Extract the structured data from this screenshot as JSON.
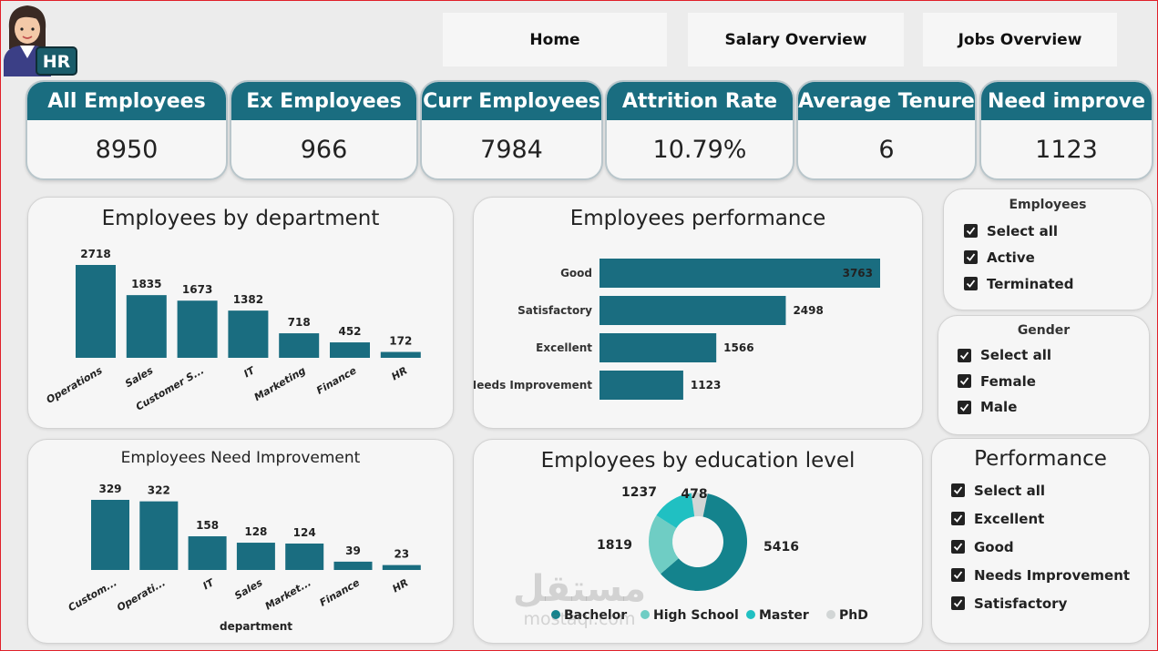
{
  "nav": {
    "home": "Home",
    "salary": "Salary Overview",
    "jobs": "Jobs Overview"
  },
  "logo": {
    "text": "HR",
    "icon": "hr-avatar-icon"
  },
  "kpis": [
    {
      "label": "All Employees",
      "value": "8950"
    },
    {
      "label": "Ex Employees",
      "value": "966"
    },
    {
      "label": "Curr Employees",
      "value": "7984"
    },
    {
      "label": "Attrition Rate",
      "value": "10.79%"
    },
    {
      "label": "Average Tenure",
      "value": "6"
    },
    {
      "label": "Need improve",
      "value": "1123"
    }
  ],
  "colors": {
    "primary": "#1a6d80",
    "bachelor": "#14838d",
    "high_school": "#6fcdc4",
    "master": "#20c0c2",
    "phd": "#8f9a9a"
  },
  "chart_data": [
    {
      "type": "bar",
      "title": "Employees by department",
      "categories": [
        "Operations",
        "Sales",
        "Customer S...",
        "IT",
        "Marketing",
        "Finance",
        "HR"
      ],
      "values": [
        2718,
        1835,
        1673,
        1382,
        718,
        452,
        172
      ],
      "ylim": [
        0,
        2718
      ]
    },
    {
      "type": "bar",
      "orientation": "horizontal",
      "title": "Employees performance",
      "categories": [
        "Good",
        "Satisfactory",
        "Excellent",
        "Needs Improvement"
      ],
      "values": [
        3763,
        2498,
        1566,
        1123
      ],
      "xlim": [
        0,
        3763
      ]
    },
    {
      "type": "bar",
      "title": "Employees Need Improvement",
      "xlabel": "department",
      "categories": [
        "Custom...",
        "Operati...",
        "IT",
        "Sales",
        "Market...",
        "Finance",
        "HR"
      ],
      "values": [
        329,
        322,
        158,
        128,
        124,
        39,
        23
      ],
      "ylim": [
        0,
        329
      ]
    },
    {
      "type": "pie",
      "donut": true,
      "title": "Employees by education level",
      "categories": [
        "Bachelor",
        "High School",
        "Master",
        "PhD"
      ],
      "values": [
        5416,
        1819,
        1237,
        478
      ],
      "legend": "bottom"
    }
  ],
  "filters": {
    "employees": {
      "title": "Employees",
      "items": [
        "Select all",
        "Active",
        "Terminated"
      ]
    },
    "gender": {
      "title": "Gender",
      "items": [
        "Select all",
        "Female",
        "Male"
      ]
    },
    "performance": {
      "title": "Performance",
      "items": [
        "Select all",
        "Excellent",
        "Good",
        "Needs Improvement",
        "Satisfactory"
      ]
    }
  },
  "watermark": {
    "arabic": "مستقل",
    "latin": "mostaql.com"
  }
}
